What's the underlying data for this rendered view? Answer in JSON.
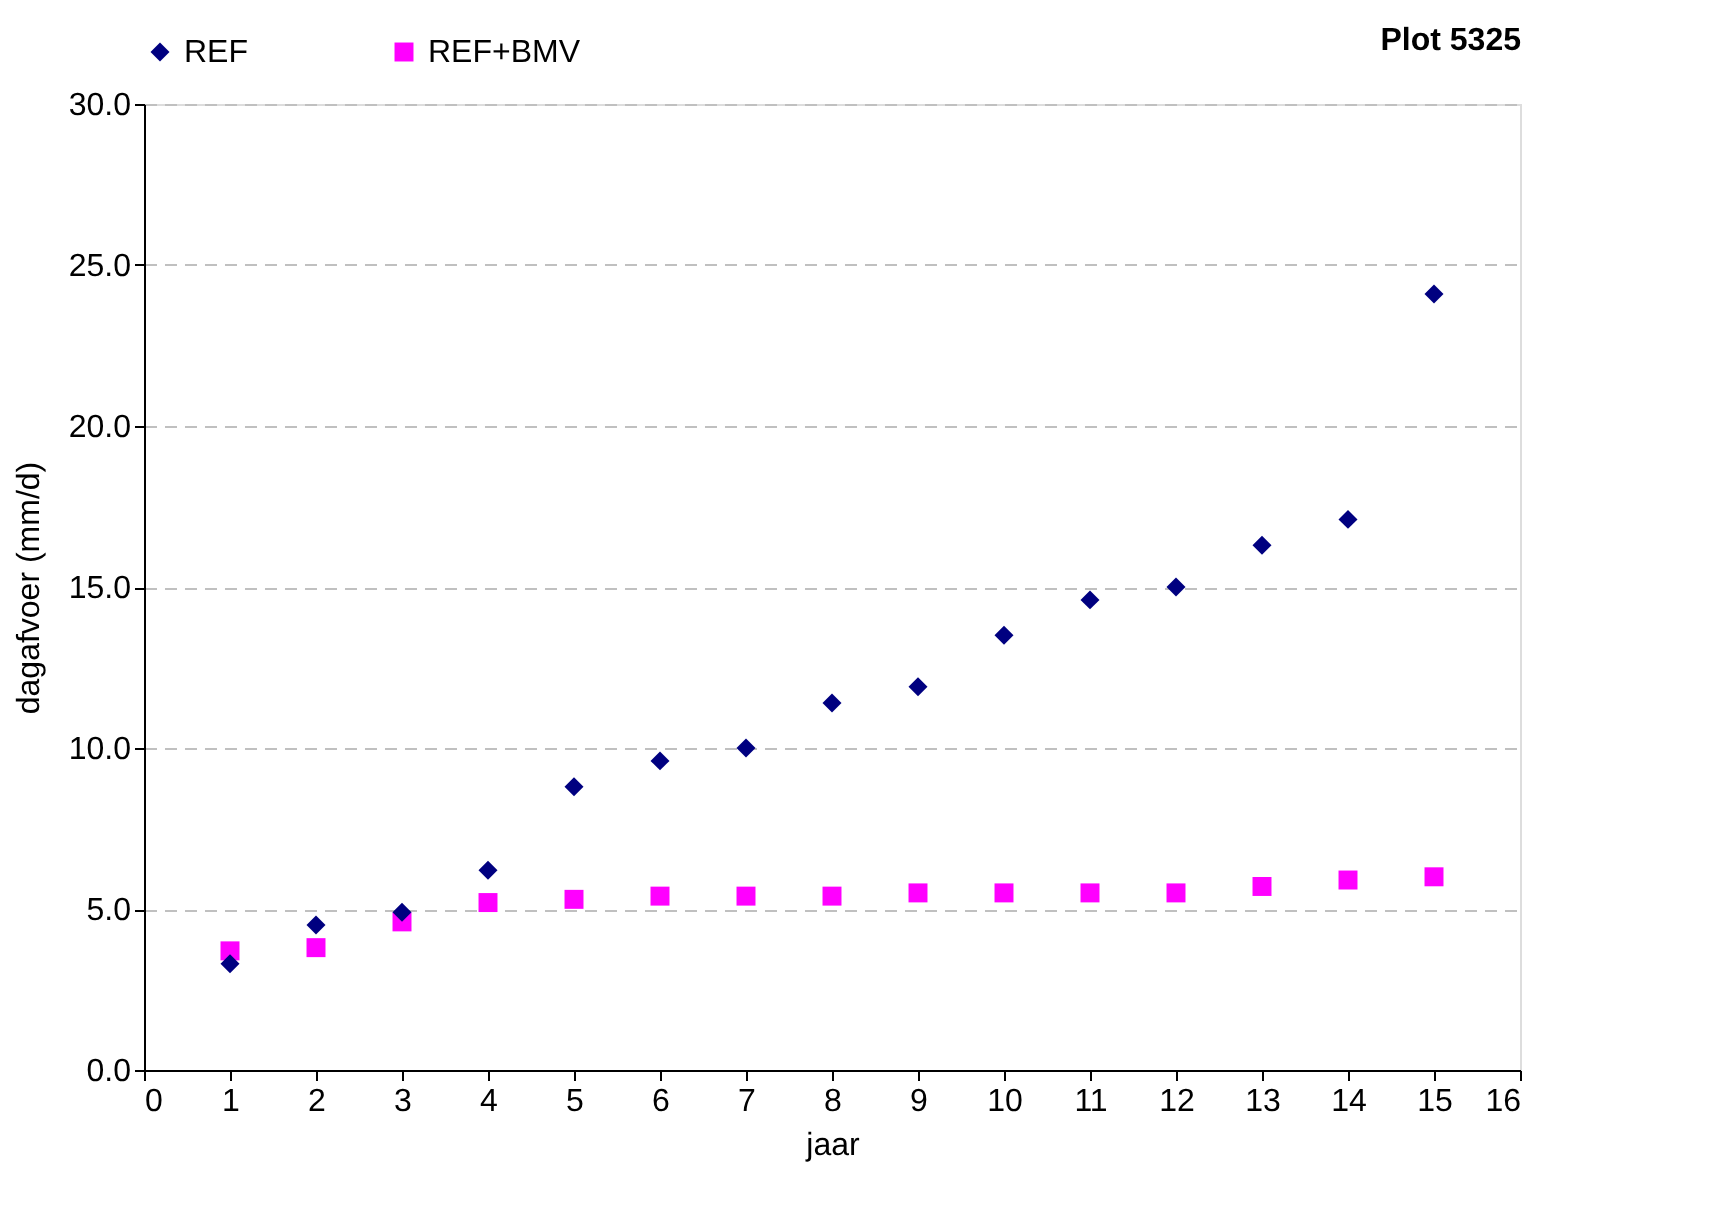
{
  "chart_data": {
    "type": "scatter",
    "title": "Plot 5325",
    "xlabel": "jaar",
    "ylabel": "dagafvoer (mm/d)",
    "x": [
      1,
      2,
      3,
      4,
      5,
      6,
      7,
      8,
      9,
      10,
      11,
      12,
      13,
      14,
      15
    ],
    "series": [
      {
        "name": "REF",
        "color": "#000080",
        "marker": "diamond",
        "values": [
          3.3,
          4.5,
          4.9,
          6.2,
          8.8,
          9.6,
          10.0,
          11.4,
          11.9,
          13.5,
          14.6,
          15.0,
          16.3,
          17.1,
          24.1
        ]
      },
      {
        "name": "REF+BMV",
        "color": "#ff00ff",
        "marker": "square",
        "values": [
          3.7,
          3.8,
          4.6,
          5.2,
          5.3,
          5.4,
          5.4,
          5.4,
          5.5,
          5.5,
          5.5,
          5.5,
          5.7,
          5.9,
          6.0
        ]
      }
    ],
    "xlim": [
      0,
      16
    ],
    "xticks": [
      0,
      1,
      2,
      3,
      4,
      5,
      6,
      7,
      8,
      9,
      10,
      11,
      12,
      13,
      14,
      15,
      16
    ],
    "ylim": [
      0,
      30
    ],
    "yticks": [
      {
        "value": 0,
        "label": "0.0"
      },
      {
        "value": 5,
        "label": "5.0"
      },
      {
        "value": 10,
        "label": "10.0"
      },
      {
        "value": 15,
        "label": "15.0"
      },
      {
        "value": 20,
        "label": "20.0"
      },
      {
        "value": 25,
        "label": "25.0"
      },
      {
        "value": 30,
        "label": "30.0"
      }
    ],
    "grid": "y",
    "legend": "top"
  }
}
